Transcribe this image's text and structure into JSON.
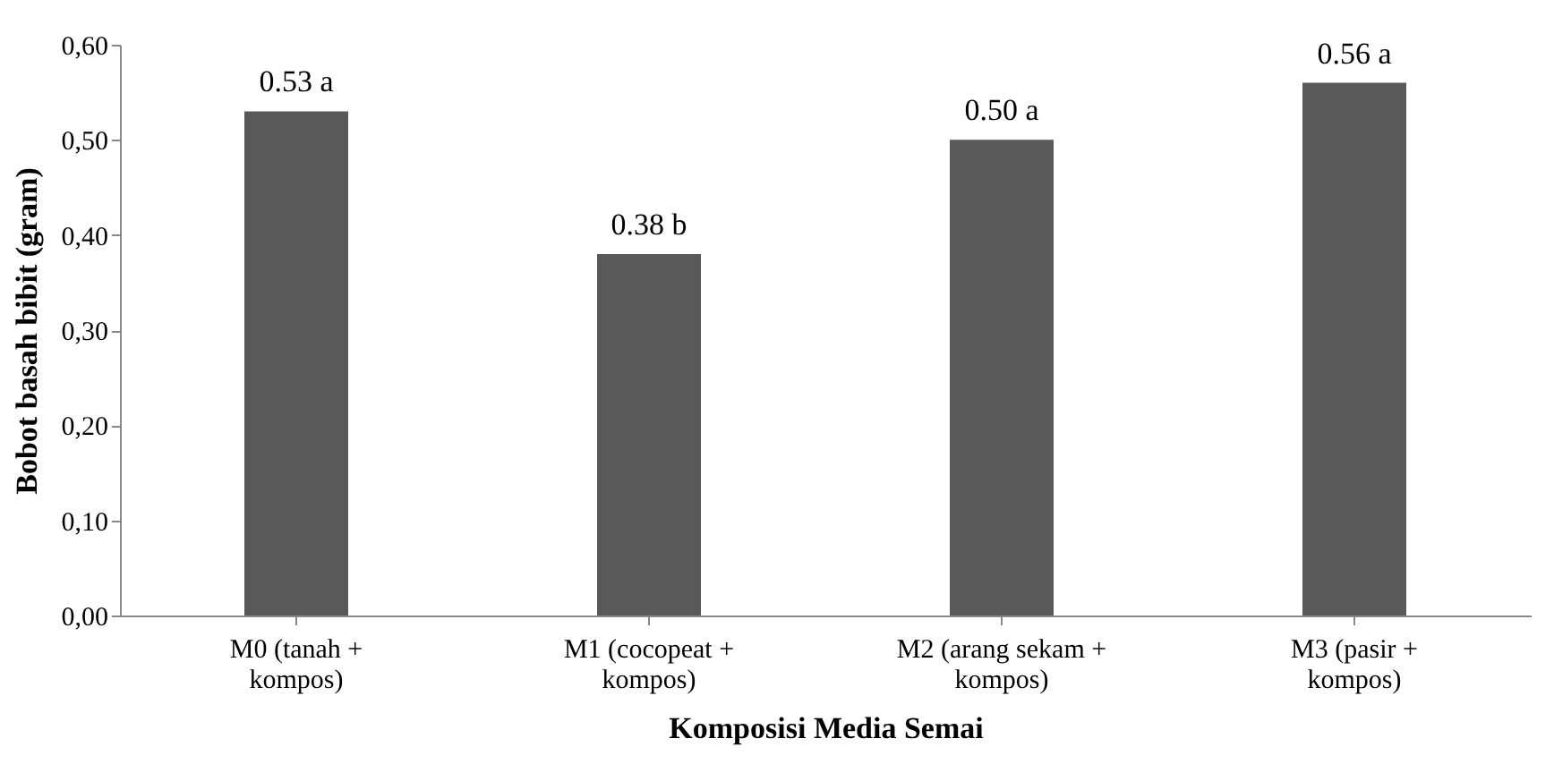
{
  "chart_data": {
    "type": "bar",
    "xlabel": "Komposisi Media Semai",
    "ylabel": "Bobot basah bibit (gram)",
    "categories": [
      "M0 (tanah + kompos)",
      "M1 (cocopeat + kompos)",
      "M2 (arang sekam + kompos)",
      "M3 (pasir + kompos)"
    ],
    "values": [
      0.53,
      0.38,
      0.5,
      0.56
    ],
    "value_labels": [
      "0.53 a",
      "0.38 b",
      "0.50 a",
      "0.56 a"
    ],
    "color": "#595959",
    "ylim": [
      0,
      0.6
    ],
    "yticks": [
      {
        "value": 0,
        "label": "0,00"
      },
      {
        "value": 0.1,
        "label": "0,10"
      },
      {
        "value": 0.2,
        "label": "0,20"
      },
      {
        "value": 0.3,
        "label": "0,30"
      },
      {
        "value": 0.4,
        "label": "0,40"
      },
      {
        "value": 0.5,
        "label": "0,50"
      },
      {
        "value": 0.6,
        "label": "0,60"
      }
    ],
    "grid": false
  }
}
